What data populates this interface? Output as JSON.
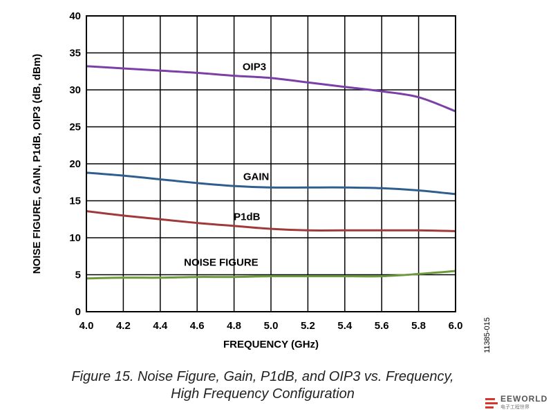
{
  "chart_data": {
    "type": "line",
    "xlabel": "FREQUENCY (GHz)",
    "ylabel": "NOISE FIGURE, GAIN, P1dB, OIP3 (dB, dBm)",
    "xlim": [
      4.0,
      6.0
    ],
    "ylim": [
      0,
      40
    ],
    "grid": true,
    "x_ticks": [
      "4.0",
      "4.2",
      "4.4",
      "4.6",
      "4.8",
      "5.0",
      "5.2",
      "5.4",
      "5.6",
      "5.8",
      "6.0"
    ],
    "y_ticks": [
      "0",
      "5",
      "10",
      "15",
      "20",
      "25",
      "30",
      "35",
      "40"
    ],
    "x": [
      4.0,
      4.2,
      4.4,
      4.6,
      4.8,
      5.0,
      5.2,
      5.4,
      5.6,
      5.8,
      6.0
    ],
    "series": [
      {
        "name": "OIP3",
        "color": "#7b3fa8",
        "values": [
          33.2,
          32.9,
          32.6,
          32.3,
          31.9,
          31.6,
          31.0,
          30.4,
          29.8,
          29.0,
          27.1
        ]
      },
      {
        "name": "GAIN",
        "color": "#2e5e8e",
        "values": [
          18.8,
          18.4,
          17.9,
          17.4,
          17.0,
          16.8,
          16.8,
          16.8,
          16.7,
          16.4,
          15.9
        ]
      },
      {
        "name": "P1dB",
        "color": "#a03a3a",
        "values": [
          13.6,
          13.0,
          12.5,
          12.0,
          11.6,
          11.2,
          11.0,
          11.0,
          11.0,
          11.0,
          10.9
        ]
      },
      {
        "name": "NOISE FIGURE",
        "color": "#6a9a3a",
        "values": [
          4.5,
          4.6,
          4.6,
          4.7,
          4.7,
          4.8,
          4.8,
          4.8,
          4.8,
          5.1,
          5.5
        ]
      }
    ]
  },
  "figure_id": "11385-015",
  "caption": {
    "line1": "Figure 15. Noise Figure, Gain, P1dB, and OIP3 vs. Frequency,",
    "line2": "High Frequency Configuration"
  },
  "watermark": {
    "name": "EEWORLD",
    "sub": "电子工程世界"
  }
}
